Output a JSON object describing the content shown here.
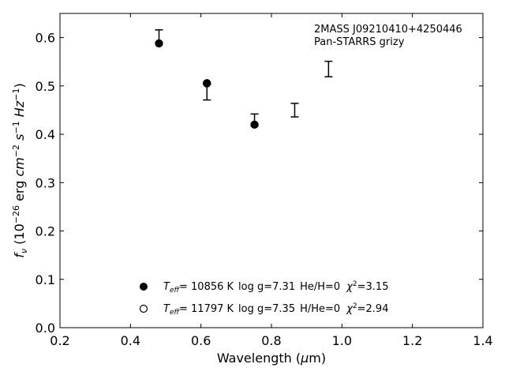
{
  "chart_data": {
    "type": "scatter",
    "annotation_lines": [
      "2MASS J09210410+4250446",
      "Pan-STARRS grizy"
    ],
    "xlabel": "Wavelength (μm)",
    "ylabel": "f_ν (10^-26 erg cm^-2 s^-1 Hz^-1)",
    "xlim": [
      0.2,
      1.4
    ],
    "ylim": [
      0.0,
      0.65
    ],
    "xticks": [
      0.2,
      0.4,
      0.6,
      0.8,
      1.0,
      1.2,
      1.4
    ],
    "xtick_labels": [
      "0.2",
      "0.4",
      "0.6",
      "0.8",
      "1.0",
      "1.2",
      "1.4"
    ],
    "yticks": [
      0.0,
      0.1,
      0.2,
      0.3,
      0.4,
      0.5,
      0.6
    ],
    "ytick_labels": [
      "0.0",
      "0.1",
      "0.2",
      "0.3",
      "0.4",
      "0.5",
      "0.6"
    ],
    "grid": false,
    "legend_position": "lower-center",
    "observed": {
      "x": [
        0.481,
        0.617,
        0.752,
        0.866,
        0.962
      ],
      "y": [
        0.602,
        0.487,
        0.431,
        0.45,
        0.535
      ],
      "yerr": [
        0.014,
        0.016,
        0.011,
        0.014,
        0.016
      ]
    },
    "series": [
      {
        "marker": "filled-circle",
        "x": [
          0.481,
          0.617,
          0.752
        ],
        "y": [
          0.588,
          0.506,
          0.42
        ],
        "legend": {
          "teff": "10856 K",
          "logg": "log g=7.31",
          "comp": "He/H=0",
          "chi2": "=3.15"
        }
      },
      {
        "marker": "open-circle",
        "x": [
          0.481,
          0.617,
          0.752
        ],
        "y": [
          0.588,
          0.505,
          0.42
        ],
        "legend": {
          "teff": "11797 K",
          "logg": "log g=7.35",
          "comp": "H/He=0",
          "chi2": "=2.94"
        }
      }
    ]
  }
}
